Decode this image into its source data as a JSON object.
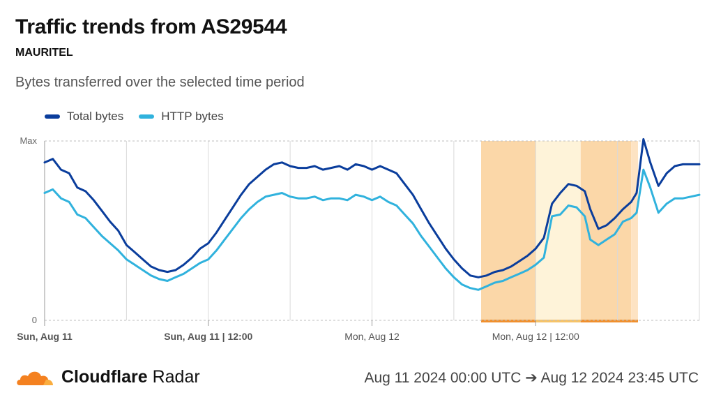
{
  "header": {
    "title": "Traffic trends from AS29544",
    "subtitle": "MAURITEL",
    "description": "Bytes transferred over the selected time period"
  },
  "legend": [
    {
      "label": "Total bytes",
      "color": "#0a3d9c"
    },
    {
      "label": "HTTP bytes",
      "color": "#30b2dd"
    }
  ],
  "footer": {
    "brand_bold": "Cloudflare",
    "brand_light": "Radar",
    "range": "Aug 11 2024 00:00 UTC ➔ Aug 12 2024 23:45 UTC"
  },
  "chart_data": {
    "type": "line",
    "x_unit": "hours since Aug 11 2024 00:00 UTC",
    "xlim": [
      0,
      48
    ],
    "ylim": [
      0,
      100
    ],
    "y_tick_labels": [
      {
        "value": 0,
        "label": "0"
      },
      {
        "value": 100,
        "label": "Max"
      }
    ],
    "x_tick_labels": [
      {
        "x": 0,
        "label": "Sun, Aug 11",
        "bold": true
      },
      {
        "x": 12,
        "label": "Sun, Aug 11 | 12:00",
        "bold": true
      },
      {
        "x": 24,
        "label": "Mon, Aug 12",
        "bold": false
      },
      {
        "x": 36,
        "label": "Mon, Aug 12 | 12:00",
        "bold": false
      }
    ],
    "vertical_gridlines_x": [
      0,
      6,
      12,
      18,
      24,
      30,
      36,
      42
    ],
    "grid": true,
    "highlight_bands": [
      {
        "x0": 32.0,
        "x1": 36.0,
        "color": "#fbd7a8"
      },
      {
        "x0": 36.0,
        "x1": 39.3,
        "color": "#fef3d9"
      },
      {
        "x0": 39.3,
        "x1": 43.0,
        "color": "#fbd7a8"
      },
      {
        "x0": 43.0,
        "x1": 43.5,
        "color": "#fde3c3"
      }
    ],
    "series": [
      {
        "name": "Total bytes",
        "color": "#0a3d9c",
        "points": [
          [
            0,
            88
          ],
          [
            0.6,
            90
          ],
          [
            1.2,
            84
          ],
          [
            1.8,
            82
          ],
          [
            2.4,
            74
          ],
          [
            3,
            72
          ],
          [
            3.6,
            67
          ],
          [
            4.2,
            61
          ],
          [
            4.8,
            55
          ],
          [
            5.4,
            50
          ],
          [
            6,
            42
          ],
          [
            6.6,
            38
          ],
          [
            7.2,
            34
          ],
          [
            7.8,
            30
          ],
          [
            8.4,
            28
          ],
          [
            9,
            27
          ],
          [
            9.6,
            28
          ],
          [
            10.2,
            31
          ],
          [
            10.8,
            35
          ],
          [
            11.4,
            40
          ],
          [
            12,
            43
          ],
          [
            12.6,
            49
          ],
          [
            13.2,
            56
          ],
          [
            13.8,
            63
          ],
          [
            14.4,
            70
          ],
          [
            15,
            76
          ],
          [
            15.6,
            80
          ],
          [
            16.2,
            84
          ],
          [
            16.8,
            87
          ],
          [
            17.4,
            88
          ],
          [
            18,
            86
          ],
          [
            18.6,
            85
          ],
          [
            19.2,
            85
          ],
          [
            19.8,
            86
          ],
          [
            20.4,
            84
          ],
          [
            21,
            85
          ],
          [
            21.6,
            86
          ],
          [
            22.2,
            84
          ],
          [
            22.8,
            87
          ],
          [
            23.4,
            86
          ],
          [
            24,
            84
          ],
          [
            24.6,
            86
          ],
          [
            25.2,
            84
          ],
          [
            25.8,
            82
          ],
          [
            26.4,
            76
          ],
          [
            27,
            70
          ],
          [
            27.6,
            62
          ],
          [
            28.2,
            54
          ],
          [
            28.8,
            47
          ],
          [
            29.4,
            40
          ],
          [
            30,
            34
          ],
          [
            30.6,
            29
          ],
          [
            31.2,
            25
          ],
          [
            31.8,
            24
          ],
          [
            32.4,
            25
          ],
          [
            33,
            27
          ],
          [
            33.6,
            28
          ],
          [
            34.2,
            30
          ],
          [
            34.8,
            33
          ],
          [
            35.4,
            36
          ],
          [
            36,
            40
          ],
          [
            36.6,
            46
          ],
          [
            37.2,
            65
          ],
          [
            37.8,
            71
          ],
          [
            38.4,
            76
          ],
          [
            39,
            75
          ],
          [
            39.6,
            72
          ],
          [
            40,
            62
          ],
          [
            40.6,
            51
          ],
          [
            41.2,
            53
          ],
          [
            41.8,
            57
          ],
          [
            42.4,
            62
          ],
          [
            43,
            66
          ],
          [
            43.4,
            71
          ],
          [
            43.9,
            101
          ],
          [
            44.4,
            88
          ],
          [
            45,
            75
          ],
          [
            45.6,
            82
          ],
          [
            46.2,
            86
          ],
          [
            46.8,
            87
          ],
          [
            47.4,
            87
          ],
          [
            48,
            87
          ]
        ]
      },
      {
        "name": "HTTP bytes",
        "color": "#30b2dd",
        "points": [
          [
            0,
            71
          ],
          [
            0.6,
            73
          ],
          [
            1.2,
            68
          ],
          [
            1.8,
            66
          ],
          [
            2.4,
            59
          ],
          [
            3,
            57
          ],
          [
            3.6,
            52
          ],
          [
            4.2,
            47
          ],
          [
            4.8,
            43
          ],
          [
            5.4,
            39
          ],
          [
            6,
            34
          ],
          [
            6.6,
            31
          ],
          [
            7.2,
            28
          ],
          [
            7.8,
            25
          ],
          [
            8.4,
            23
          ],
          [
            9,
            22
          ],
          [
            9.6,
            24
          ],
          [
            10.2,
            26
          ],
          [
            10.8,
            29
          ],
          [
            11.4,
            32
          ],
          [
            12,
            34
          ],
          [
            12.6,
            39
          ],
          [
            13.2,
            45
          ],
          [
            13.8,
            51
          ],
          [
            14.4,
            57
          ],
          [
            15,
            62
          ],
          [
            15.6,
            66
          ],
          [
            16.2,
            69
          ],
          [
            16.8,
            70
          ],
          [
            17.4,
            71
          ],
          [
            18,
            69
          ],
          [
            18.6,
            68
          ],
          [
            19.2,
            68
          ],
          [
            19.8,
            69
          ],
          [
            20.4,
            67
          ],
          [
            21,
            68
          ],
          [
            21.6,
            68
          ],
          [
            22.2,
            67
          ],
          [
            22.8,
            70
          ],
          [
            23.4,
            69
          ],
          [
            24,
            67
          ],
          [
            24.6,
            69
          ],
          [
            25.2,
            66
          ],
          [
            25.8,
            64
          ],
          [
            26.4,
            59
          ],
          [
            27,
            54
          ],
          [
            27.6,
            47
          ],
          [
            28.2,
            41
          ],
          [
            28.8,
            35
          ],
          [
            29.4,
            29
          ],
          [
            30,
            24
          ],
          [
            30.6,
            20
          ],
          [
            31.2,
            18
          ],
          [
            31.8,
            17
          ],
          [
            32.4,
            19
          ],
          [
            33,
            21
          ],
          [
            33.6,
            22
          ],
          [
            34.2,
            24
          ],
          [
            34.8,
            26
          ],
          [
            35.4,
            28
          ],
          [
            36,
            31
          ],
          [
            36.6,
            35
          ],
          [
            37.2,
            58
          ],
          [
            37.8,
            59
          ],
          [
            38.4,
            64
          ],
          [
            39,
            63
          ],
          [
            39.6,
            58
          ],
          [
            40,
            45
          ],
          [
            40.6,
            42
          ],
          [
            41.2,
            45
          ],
          [
            41.8,
            48
          ],
          [
            42.4,
            55
          ],
          [
            43,
            57
          ],
          [
            43.4,
            60
          ],
          [
            43.9,
            84
          ],
          [
            44.4,
            74
          ],
          [
            45,
            60
          ],
          [
            45.6,
            65
          ],
          [
            46.2,
            68
          ],
          [
            46.8,
            68
          ],
          [
            47.4,
            69
          ],
          [
            48,
            70
          ]
        ]
      }
    ]
  }
}
